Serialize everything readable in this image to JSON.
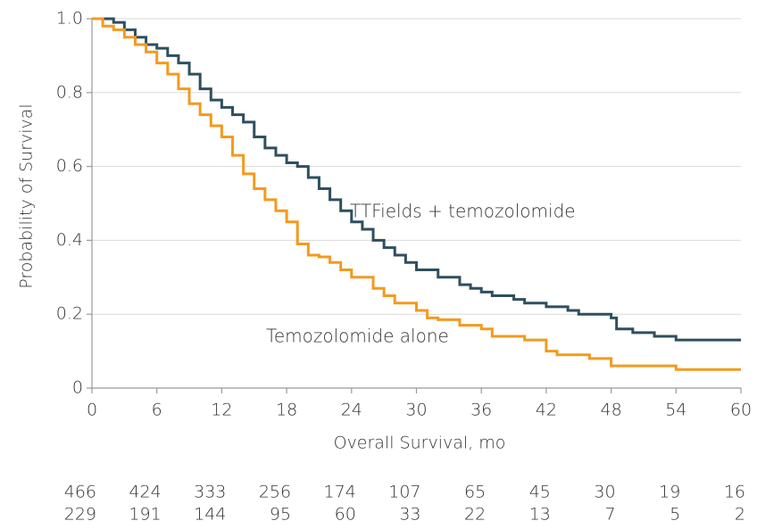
{
  "chart_data": {
    "type": "step",
    "x_label": "Overall Survival, mo",
    "y_label": "Probability of Survival",
    "xlim": [
      0,
      60
    ],
    "xticks": [
      0,
      6,
      12,
      18,
      24,
      30,
      36,
      42,
      48,
      54,
      60
    ],
    "ylim": [
      0,
      1
    ],
    "yticks": [
      0,
      0.2,
      0.4,
      0.6,
      0.8,
      {
        "value": 1,
        "label": "1.0"
      }
    ],
    "grid": true,
    "series": [
      {
        "name": "TTFields + temozolomide",
        "color": "#2f4f5e",
        "x": [
          0,
          2,
          3,
          4,
          5,
          6,
          7,
          8,
          9,
          10,
          11,
          12,
          13,
          14,
          15,
          16,
          17,
          18,
          19,
          20,
          21,
          22,
          23,
          24,
          25,
          26,
          27,
          28,
          29,
          30,
          32,
          34,
          35,
          36,
          37,
          39,
          40,
          42,
          44,
          45,
          48,
          48.5,
          50,
          52,
          54,
          60
        ],
        "values": [
          1.0,
          0.99,
          0.97,
          0.95,
          0.93,
          0.92,
          0.9,
          0.88,
          0.85,
          0.81,
          0.78,
          0.76,
          0.74,
          0.72,
          0.68,
          0.65,
          0.63,
          0.61,
          0.6,
          0.57,
          0.54,
          0.51,
          0.48,
          0.45,
          0.43,
          0.4,
          0.38,
          0.36,
          0.34,
          0.32,
          0.3,
          0.28,
          0.27,
          0.26,
          0.25,
          0.24,
          0.23,
          0.22,
          0.21,
          0.2,
          0.19,
          0.16,
          0.15,
          0.14,
          0.13,
          0.13
        ]
      },
      {
        "name": "Temozolomide alone",
        "color": "#f39a1e",
        "x": [
          0,
          1,
          2,
          3,
          4,
          5,
          6,
          7,
          8,
          9,
          10,
          11,
          12,
          13,
          14,
          15,
          16,
          17,
          18,
          19,
          20,
          21,
          22,
          23,
          24,
          26,
          27,
          28,
          30,
          31,
          32,
          34,
          36,
          37,
          40,
          42,
          43,
          46,
          48,
          54,
          60
        ],
        "values": [
          1.0,
          0.98,
          0.97,
          0.95,
          0.93,
          0.91,
          0.88,
          0.85,
          0.81,
          0.77,
          0.74,
          0.71,
          0.68,
          0.63,
          0.58,
          0.54,
          0.51,
          0.48,
          0.45,
          0.39,
          0.36,
          0.355,
          0.34,
          0.32,
          0.3,
          0.27,
          0.25,
          0.23,
          0.21,
          0.19,
          0.185,
          0.17,
          0.16,
          0.14,
          0.13,
          0.1,
          0.09,
          0.08,
          0.06,
          0.05,
          0.05
        ]
      }
    ],
    "risk_table": [
      [
        466,
        424,
        333,
        256,
        174,
        107,
        65,
        45,
        30,
        19,
        16
      ],
      [
        229,
        191,
        144,
        95,
        60,
        33,
        22,
        13,
        7,
        5,
        2
      ]
    ]
  }
}
